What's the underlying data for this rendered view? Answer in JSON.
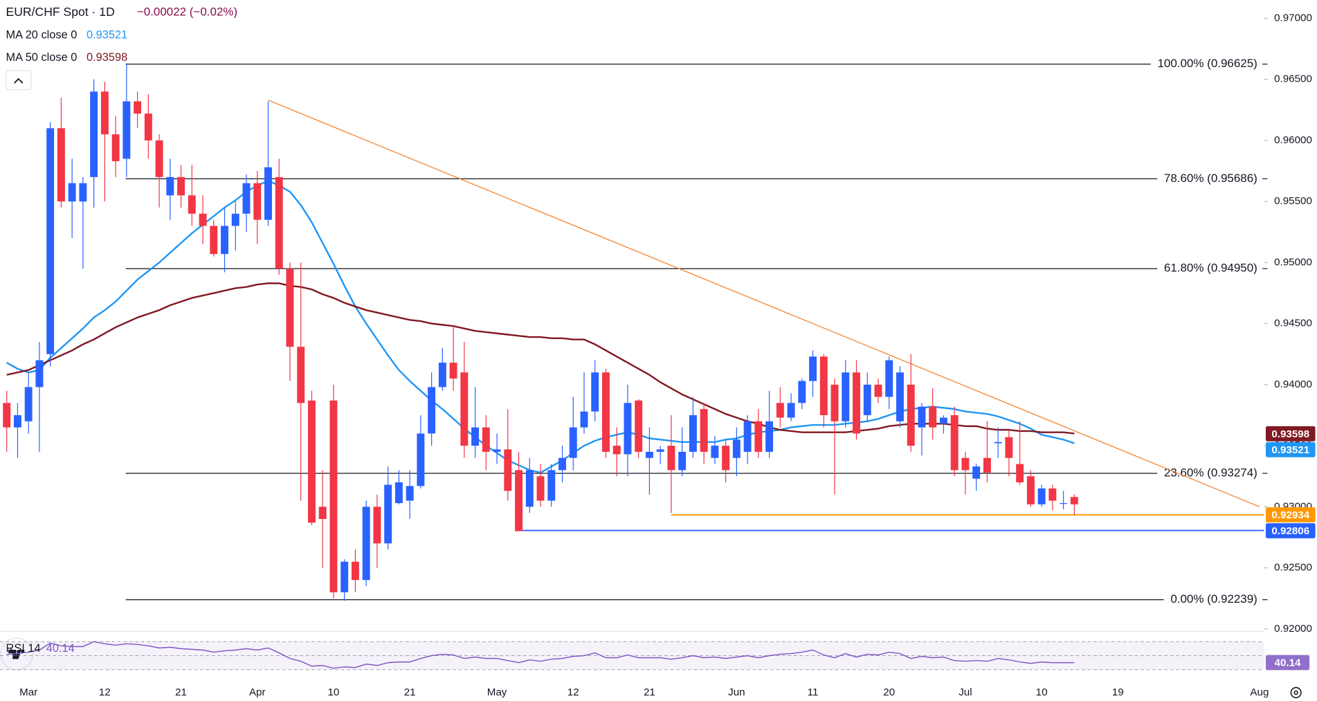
{
  "chart_data": {
    "type": "candlestick",
    "title": "EUR/CHF Spot · 1D",
    "change": "−0.00022 (−0.02%)",
    "categories": [
      null,
      null,
      "Mar",
      null,
      null,
      null,
      null,
      null,
      null,
      "12",
      null,
      null,
      null,
      null,
      null,
      null,
      "21",
      null,
      null,
      null,
      null,
      null,
      null,
      "Apr",
      null,
      null,
      null,
      null,
      null,
      null,
      "10",
      null,
      null,
      null,
      null,
      null,
      null,
      "21",
      null,
      null,
      null,
      null,
      null,
      null,
      null,
      "May",
      null,
      null,
      null,
      null,
      null,
      null,
      "12",
      null,
      null,
      null,
      null,
      null,
      null,
      "21",
      null,
      null,
      null,
      null,
      null,
      null,
      null,
      "Jun",
      null,
      null,
      null,
      null,
      null,
      null,
      "11",
      null,
      null,
      null,
      null,
      null,
      null,
      "20",
      null,
      null,
      null,
      null,
      null,
      null,
      "Jul",
      null,
      null,
      null,
      null,
      null,
      null,
      "10",
      null,
      null,
      null,
      null,
      null,
      null,
      "19",
      null,
      null,
      null,
      null,
      null,
      null,
      null,
      null,
      null,
      null,
      null,
      null,
      "Aug"
    ],
    "open": [
      0.9385,
      0.9365,
      0.937,
      0.9398,
      0.9425,
      0.961,
      0.955,
      0.955,
      0.957,
      0.964,
      0.9605,
      0.9585,
      0.9632,
      0.9622,
      0.96,
      0.9555,
      0.957,
      0.9555,
      0.954,
      0.953,
      0.9507,
      0.953,
      0.954,
      0.9565,
      0.9535,
      0.957,
      0.9495,
      0.9431,
      0.9387,
      0.93,
      0.9387,
      0.923,
      0.9255,
      0.924,
      0.93,
      0.927,
      0.9303,
      0.9305,
      0.9317,
      0.936,
      0.9398,
      0.9418,
      0.941,
      0.935,
      0.9365,
      0.9345,
      0.9347,
      0.933,
      0.93,
      0.9325,
      0.9305,
      0.933,
      0.934,
      0.9365,
      0.9378,
      0.941,
      0.935,
      0.9343,
      0.9387,
      0.934,
      0.9345,
      0.935,
      0.933,
      0.9345,
      0.938,
      0.934,
      0.935,
      0.934,
      0.9345,
      0.937,
      0.9345,
      0.9385,
      0.9373,
      0.9385,
      0.9403,
      0.9423,
      0.94,
      0.937,
      0.941,
      0.9375,
      0.94,
      0.939,
      0.937,
      0.94,
      0.9365,
      0.9382,
      0.9368,
      0.9375,
      0.934,
      0.9323,
      0.934,
      0.9352,
      0.9357,
      0.9335,
      0.9325,
      0.9302,
      0.9315,
      0.9303,
      0.9308,
      null,
      null,
      null,
      null,
      null,
      null,
      null,
      null,
      null,
      null,
      null,
      null,
      null,
      null,
      null,
      null,
      null
    ],
    "high": [
      0.9395,
      0.9385,
      0.941,
      0.9435,
      0.9615,
      0.9635,
      0.9585,
      0.957,
      0.965,
      0.9648,
      0.962,
      0.9663,
      0.964,
      0.9638,
      0.9605,
      0.9585,
      0.958,
      0.958,
      0.9555,
      0.9535,
      0.9545,
      0.955,
      0.9572,
      0.9575,
      0.9632,
      0.9585,
      0.95,
      0.95,
      0.9395,
      0.933,
      0.94,
      0.9257,
      0.9265,
      0.9305,
      0.931,
      0.9333,
      0.933,
      0.933,
      0.9375,
      0.941,
      0.943,
      0.9448,
      0.9435,
      0.9398,
      0.9375,
      0.936,
      0.938,
      0.9345,
      0.934,
      0.9335,
      0.9335,
      0.935,
      0.939,
      0.941,
      0.942,
      0.9413,
      0.9365,
      0.94,
      0.9388,
      0.9365,
      0.935,
      0.9375,
      0.9365,
      0.939,
      0.9385,
      0.9358,
      0.9355,
      0.9365,
      0.9375,
      0.938,
      0.9395,
      0.9398,
      0.9393,
      0.9405,
      0.9428,
      0.9425,
      0.9405,
      0.942,
      0.942,
      0.941,
      0.9405,
      0.9423,
      0.9415,
      0.9425,
      0.9385,
      0.9397,
      0.9375,
      0.9382,
      0.9345,
      0.9335,
      0.937,
      0.9365,
      0.9363,
      0.937,
      0.933,
      0.9318,
      0.9318,
      0.9313,
      0.931,
      null,
      null,
      null,
      null,
      null,
      null,
      null,
      null,
      null,
      null,
      null,
      null,
      null,
      null,
      null,
      null,
      null
    ],
    "low": [
      0.9345,
      0.934,
      0.936,
      0.9345,
      0.9415,
      0.9545,
      0.952,
      0.9495,
      0.9545,
      0.955,
      0.957,
      0.957,
      0.961,
      0.9585,
      0.9545,
      0.9535,
      0.9545,
      0.953,
      0.9515,
      0.9505,
      0.9492,
      0.951,
      0.9525,
      0.9515,
      0.953,
      0.949,
      0.9403,
      0.9305,
      0.9285,
      0.925,
      0.9225,
      0.9223,
      0.923,
      0.9235,
      0.925,
      0.9265,
      0.9302,
      0.929,
      0.9315,
      0.935,
      0.9395,
      0.9395,
      0.934,
      0.934,
      0.933,
      0.9335,
      0.9305,
      0.928,
      0.9295,
      0.93,
      0.93,
      0.932,
      0.933,
      0.936,
      0.937,
      0.934,
      0.9325,
      0.9325,
      0.934,
      0.931,
      0.9335,
      0.9295,
      0.9325,
      0.934,
      0.9335,
      0.9335,
      0.932,
      0.9325,
      0.9335,
      0.934,
      0.934,
      0.9365,
      0.937,
      0.938,
      0.939,
      0.9365,
      0.931,
      0.9365,
      0.9355,
      0.937,
      0.9385,
      0.938,
      0.9365,
      0.9345,
      0.9342,
      0.9355,
      0.936,
      0.9325,
      0.931,
      0.9313,
      0.932,
      0.934,
      0.9325,
      0.9318,
      0.93,
      0.93,
      0.9297,
      0.9298,
      0.9293,
      null,
      null,
      null,
      null,
      null,
      null,
      null,
      null,
      null,
      null,
      null,
      null,
      null,
      null,
      null,
      null,
      null
    ],
    "close": [
      0.9365,
      0.9375,
      0.9398,
      0.942,
      0.961,
      0.955,
      0.9565,
      0.9565,
      0.964,
      0.9605,
      0.9583,
      0.9632,
      0.9622,
      0.96,
      0.957,
      0.957,
      0.9555,
      0.954,
      0.953,
      0.9507,
      0.953,
      0.954,
      0.9565,
      0.9535,
      0.9578,
      0.9495,
      0.9431,
      0.9385,
      0.9287,
      0.929,
      0.923,
      0.9255,
      0.924,
      0.93,
      0.927,
      0.9318,
      0.932,
      0.9317,
      0.936,
      0.9398,
      0.9418,
      0.9405,
      0.935,
      0.9365,
      0.9345,
      0.9347,
      0.9313,
      0.928,
      0.933,
      0.9305,
      0.933,
      0.934,
      0.9365,
      0.9378,
      0.941,
      0.9345,
      0.9343,
      0.9385,
      0.9345,
      0.9345,
      0.9347,
      0.933,
      0.9345,
      0.9375,
      0.9345,
      0.935,
      0.933,
      0.9355,
      0.937,
      0.9345,
      0.937,
      0.9373,
      0.9385,
      0.9403,
      0.9423,
      0.9375,
      0.937,
      0.941,
      0.936,
      0.94,
      0.939,
      0.942,
      0.941,
      0.935,
      0.9382,
      0.9365,
      0.9373,
      0.933,
      0.933,
      0.9333,
      0.9328,
      0.9353,
      0.934,
      0.932,
      0.9302,
      0.9315,
      0.9305,
      0.9303,
      0.9302,
      null,
      null,
      null,
      null,
      null,
      null,
      null,
      null,
      null,
      null,
      null,
      null,
      null,
      null,
      null,
      null,
      null
    ],
    "up_color": "#2962ff",
    "down_color": "#f23645",
    "ylim": [
      0.9198,
      0.9715
    ],
    "yticks": [
      {
        "value": 0.92,
        "label": "0.92000"
      },
      {
        "value": 0.925,
        "label": "0.92500"
      },
      {
        "value": 0.93,
        "label": "0.93000"
      },
      {
        "value": 0.935,
        "label": "0.93500"
      },
      {
        "value": 0.94,
        "label": "0.94000"
      },
      {
        "value": 0.945,
        "label": "0.94500"
      },
      {
        "value": 0.95,
        "label": "0.95000"
      },
      {
        "value": 0.955,
        "label": "0.95500"
      },
      {
        "value": 0.96,
        "label": "0.96000"
      },
      {
        "value": 0.965,
        "label": "0.96500"
      },
      {
        "value": 0.97,
        "label": "0.97000"
      }
    ],
    "overlays": [
      {
        "name": "MA 20 close 0",
        "color": "#2196f3",
        "last": 0.93521,
        "values": [
          0.9418,
          0.9413,
          0.941,
          0.9412,
          0.9422,
          0.943,
          0.9438,
          0.9446,
          0.9455,
          0.9461,
          0.9468,
          0.9477,
          0.9486,
          0.9493,
          0.95,
          0.9508,
          0.9516,
          0.9524,
          0.9531,
          0.9538,
          0.9545,
          0.9551,
          0.9558,
          0.9563,
          0.9567,
          0.9563,
          0.9558,
          0.9547,
          0.9533,
          0.9516,
          0.9499,
          0.9481,
          0.9464,
          0.945,
          0.9437,
          0.9424,
          0.9412,
          0.9403,
          0.9395,
          0.9387,
          0.938,
          0.9372,
          0.9364,
          0.9357,
          0.935,
          0.9344,
          0.9338,
          0.9334,
          0.933,
          0.9328,
          0.9333,
          0.9338,
          0.9344,
          0.935,
          0.9354,
          0.9357,
          0.9359,
          0.9361,
          0.9359,
          0.9356,
          0.9355,
          0.9354,
          0.9353,
          0.9353,
          0.9353,
          0.9353,
          0.9355,
          0.9356,
          0.9359,
          0.9361,
          0.9362,
          0.9363,
          0.9365,
          0.9366,
          0.9367,
          0.9367,
          0.9367,
          0.9368,
          0.9369,
          0.937,
          0.9372,
          0.9375,
          0.9378,
          0.938,
          0.9381,
          0.9382,
          0.9381,
          0.938,
          0.9378,
          0.9377,
          0.9376,
          0.9374,
          0.9371,
          0.9368,
          0.9364,
          0.9359,
          0.9357,
          0.9355,
          0.9352,
          null,
          null,
          null,
          null,
          null,
          null,
          null,
          null,
          null,
          null,
          null,
          null,
          null,
          null,
          null,
          null,
          null
        ]
      },
      {
        "name": "MA 50 close 0",
        "color": "#801922",
        "last": 0.93598,
        "values": [
          0.9408,
          0.941,
          0.9412,
          0.9416,
          0.942,
          0.9424,
          0.9428,
          0.9433,
          0.9437,
          0.9442,
          0.9447,
          0.9451,
          0.9455,
          0.9458,
          0.9461,
          0.9465,
          0.9468,
          0.9471,
          0.9473,
          0.9475,
          0.9477,
          0.9479,
          0.948,
          0.9482,
          0.9483,
          0.9483,
          0.9481,
          0.948,
          0.9478,
          0.9474,
          0.9471,
          0.9467,
          0.9464,
          0.9461,
          0.9459,
          0.9457,
          0.9455,
          0.9453,
          0.9452,
          0.945,
          0.9449,
          0.9448,
          0.9446,
          0.9444,
          0.9443,
          0.9442,
          0.9441,
          0.944,
          0.9439,
          0.9439,
          0.9438,
          0.9438,
          0.9437,
          0.9437,
          0.9433,
          0.9428,
          0.9423,
          0.9418,
          0.9413,
          0.9408,
          0.9402,
          0.9397,
          0.9392,
          0.9388,
          0.9384,
          0.938,
          0.9376,
          0.9373,
          0.937,
          0.9368,
          0.9365,
          0.9363,
          0.9362,
          0.9361,
          0.9361,
          0.9361,
          0.9361,
          0.9361,
          0.9362,
          0.9363,
          0.9364,
          0.9366,
          0.9367,
          0.9368,
          0.9368,
          0.9368,
          0.9368,
          0.9367,
          0.9366,
          0.9366,
          0.9364,
          0.9363,
          0.9363,
          0.9362,
          0.9362,
          0.9361,
          0.9361,
          0.9361,
          0.936,
          null,
          null,
          null,
          null,
          null,
          null,
          null,
          null,
          null,
          null,
          null,
          null,
          null,
          null,
          null,
          null,
          null
        ]
      }
    ],
    "fib_color": "#131722",
    "fibonacci": [
      {
        "value": 0.96625,
        "label": "100.00% (0.96625)"
      },
      {
        "value": 0.95686,
        "label": "78.60% (0.95686)"
      },
      {
        "value": 0.9495,
        "label": "61.80% (0.94950)"
      },
      {
        "value": 0.93274,
        "label": "23.60% (0.93274)"
      },
      {
        "value": 0.92239,
        "label": "0.00% (0.92239)"
      }
    ],
    "trendline": {
      "color": "#f57c20",
      "x": [
        24,
        115
      ],
      "values": [
        0.9633,
        0.93
      ]
    },
    "levels": [
      {
        "value": 0.92934,
        "color": "#ff9800",
        "start": 61
      },
      {
        "value": 0.92806,
        "color": "#2962ff",
        "start": 47
      }
    ],
    "rsi": {
      "name": "RSI 14",
      "color": "#7e57c2",
      "last": 40.14,
      "ylim": [
        20,
        80
      ],
      "levels": [
        70,
        50,
        30
      ],
      "values": [
        52,
        53,
        55,
        58,
        68,
        64,
        63,
        63,
        70,
        67,
        65,
        67,
        66,
        64,
        61,
        62,
        60,
        59,
        58,
        55,
        57,
        58,
        60,
        58,
        61,
        54,
        46,
        42,
        35,
        36,
        32,
        34,
        33,
        38,
        36,
        40,
        41,
        41,
        46,
        50,
        52,
        51,
        46,
        48,
        46,
        46,
        43,
        40,
        44,
        42,
        45,
        46,
        49,
        50,
        54,
        47,
        47,
        51,
        47,
        47,
        47,
        45,
        47,
        50,
        47,
        48,
        46,
        48,
        50,
        47,
        50,
        52,
        53,
        55,
        58,
        51,
        47,
        53,
        48,
        52,
        51,
        55,
        53,
        46,
        49,
        47,
        48,
        43,
        42,
        43,
        42,
        46,
        44,
        41,
        39,
        41,
        40,
        40,
        40,
        null,
        null,
        null,
        null,
        null,
        null,
        null,
        null,
        null,
        null,
        null,
        null,
        null,
        null,
        null,
        null,
        null
      ]
    }
  }
}
